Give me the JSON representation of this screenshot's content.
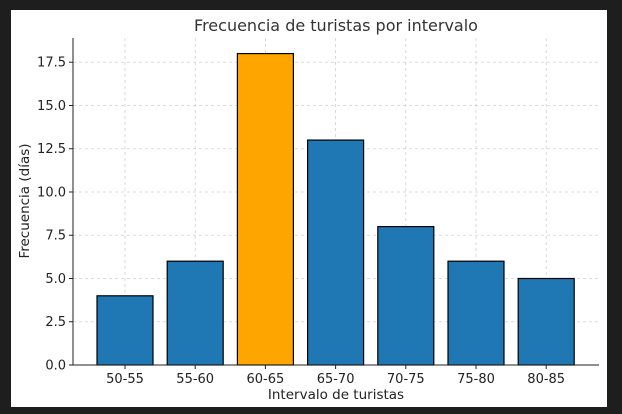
{
  "chart_data": {
    "type": "bar",
    "title": "Frecuencia de turistas por intervalo",
    "xlabel": "Intervalo de turistas",
    "ylabel": "Frecuencia (días)",
    "categories": [
      "50-55",
      "55-60",
      "60-65",
      "65-70",
      "70-75",
      "75-80",
      "80-85"
    ],
    "values": [
      4,
      6,
      18,
      13,
      8,
      6,
      5
    ],
    "highlighted_category": "60-65",
    "ylim": [
      0,
      18.9
    ],
    "yticks": [
      "0.0",
      "2.5",
      "5.0",
      "7.5",
      "10.0",
      "12.5",
      "15.0",
      "17.5"
    ],
    "grid": true,
    "colors": {
      "bar": "#1f77b4",
      "highlight": "#ffa500",
      "edge": "#000000",
      "grid": "#d0d0d0"
    }
  }
}
